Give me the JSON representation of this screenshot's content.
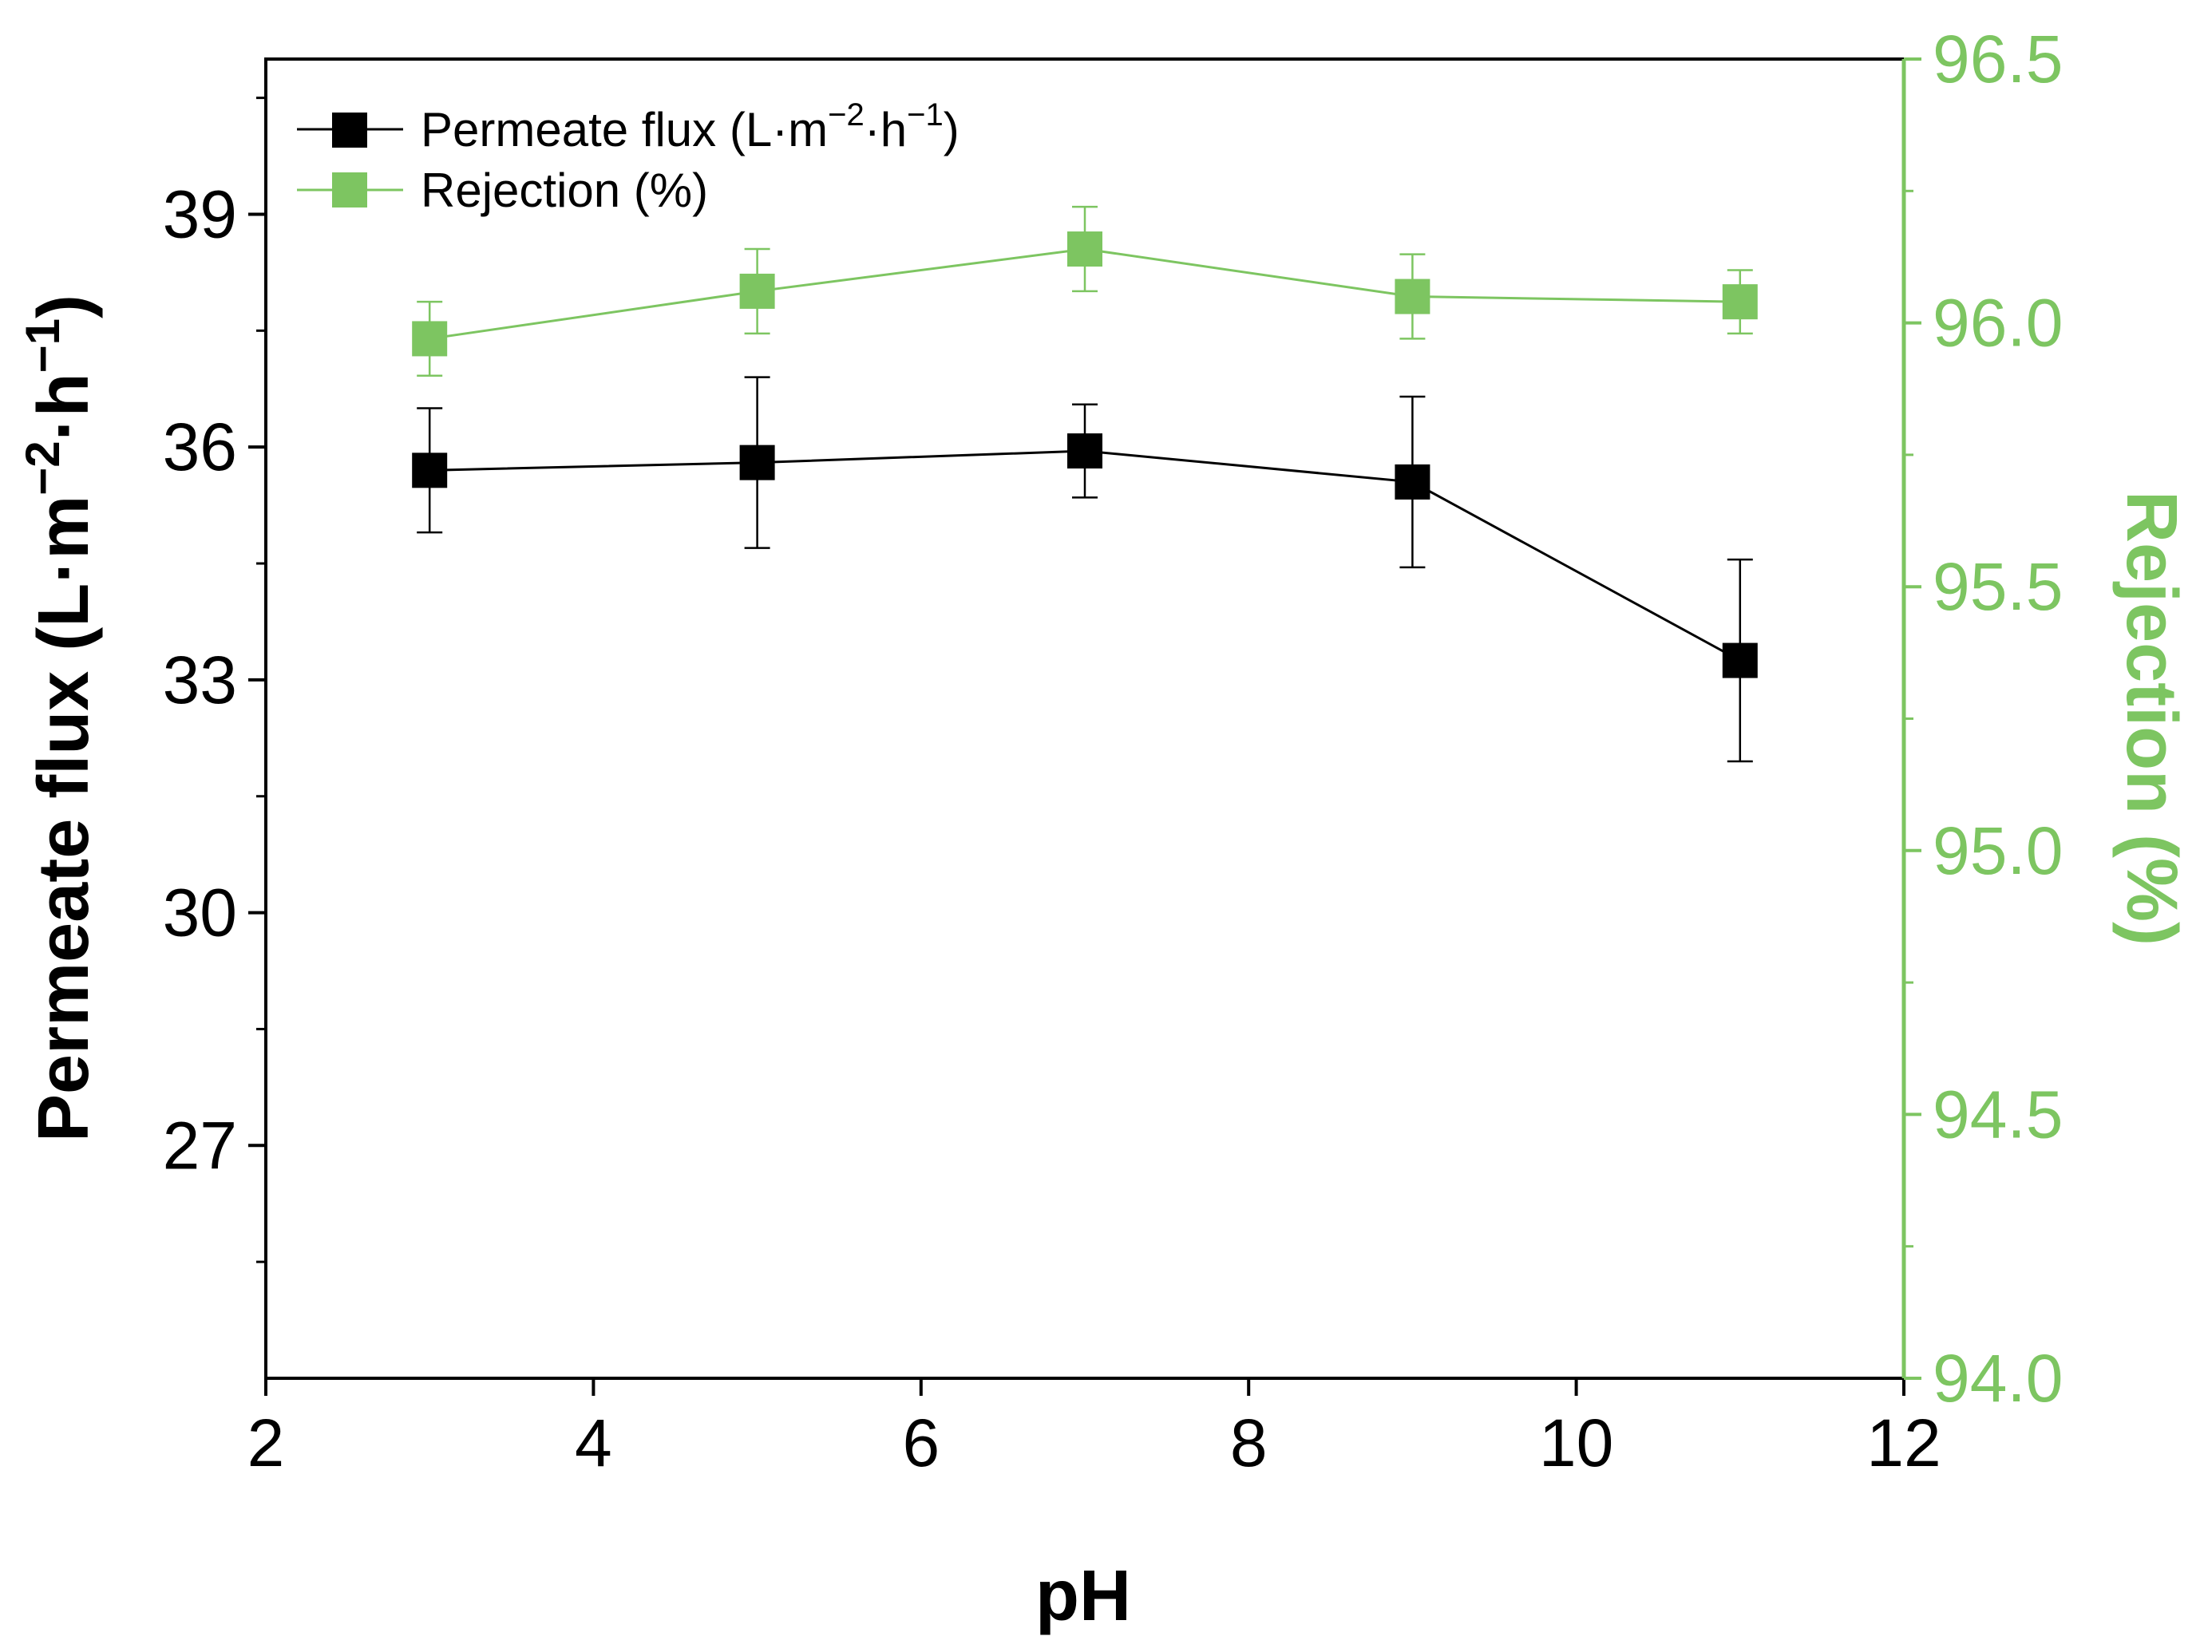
{
  "chart_data": {
    "type": "line",
    "x": [
      3,
      5,
      7,
      9,
      11
    ],
    "xlabel": "pH",
    "xlim": [
      2,
      12
    ],
    "xticks": [
      2,
      4,
      6,
      8,
      10,
      12
    ],
    "xtick_labels": [
      "2",
      "4",
      "6",
      "8",
      "10",
      "12"
    ],
    "y_left": {
      "label_main": "Permeate flux (L·m",
      "label_sup1": "−2",
      "label_mid": "·h",
      "label_sup2": "−1",
      "label_end": ")",
      "ylim": [
        24,
        41
      ],
      "ticks": [
        27,
        30,
        33,
        36,
        39
      ],
      "tick_labels": [
        "27",
        "30",
        "33",
        "36",
        "39"
      ],
      "color": "#000000"
    },
    "y_right": {
      "label": "Rejection (%)",
      "ylim": [
        94.0,
        96.5
      ],
      "ticks": [
        94.0,
        94.5,
        95.0,
        95.5,
        96.0,
        96.5
      ],
      "tick_labels": [
        "94.0",
        "94.5",
        "95.0",
        "95.5",
        "96.0",
        "96.5"
      ],
      "color": "#7DC561"
    },
    "series": [
      {
        "name": "Permeate flux",
        "axis": "left",
        "color": "#000000",
        "values": [
          35.7,
          35.8,
          35.95,
          35.55,
          33.25
        ],
        "errors": [
          0.8,
          1.1,
          0.6,
          1.1,
          1.3
        ]
      },
      {
        "name": "Rejection",
        "axis": "right",
        "color": "#7DC561",
        "values": [
          95.97,
          96.06,
          96.14,
          96.05,
          96.04
        ],
        "errors": [
          0.07,
          0.08,
          0.08,
          0.08,
          0.06
        ]
      }
    ],
    "legend": {
      "position": "top-left",
      "entries": [
        {
          "main": "Permeate flux (L·m",
          "sup1": "−2",
          "mid": "·h",
          "sup2": "−1",
          "end": ")"
        },
        {
          "main": "Rejection (%)"
        }
      ]
    }
  }
}
